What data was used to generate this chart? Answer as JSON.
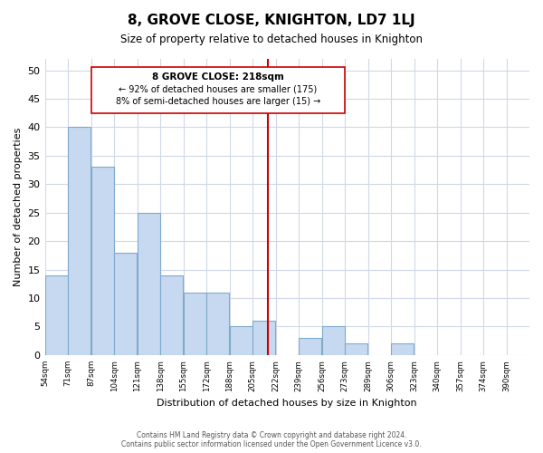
{
  "title": "8, GROVE CLOSE, KNIGHTON, LD7 1LJ",
  "subtitle": "Size of property relative to detached houses in Knighton",
  "xlabel": "Distribution of detached houses by size in Knighton",
  "ylabel": "Number of detached properties",
  "footer_line1": "Contains HM Land Registry data © Crown copyright and database right 2024.",
  "footer_line2": "Contains public sector information licensed under the Open Government Licence v3.0.",
  "bin_labels": [
    "54sqm",
    "71sqm",
    "87sqm",
    "104sqm",
    "121sqm",
    "138sqm",
    "155sqm",
    "172sqm",
    "188sqm",
    "205sqm",
    "222sqm",
    "239sqm",
    "256sqm",
    "273sqm",
    "289sqm",
    "306sqm",
    "323sqm",
    "340sqm",
    "357sqm",
    "374sqm",
    "390sqm"
  ],
  "bar_heights": [
    14,
    40,
    33,
    18,
    25,
    14,
    11,
    11,
    5,
    6,
    0,
    3,
    5,
    2,
    0,
    2,
    0,
    0,
    0,
    0,
    0
  ],
  "bar_color": "#c6d9f0",
  "bar_edge_color": "#7faacd",
  "vline_color": "#cc0000",
  "annotation_title": "8 GROVE CLOSE: 218sqm",
  "annotation_line1": "← 92% of detached houses are smaller (175)",
  "annotation_line2": "8% of semi-detached houses are larger (15) →",
  "annotation_box_color": "#ffffff",
  "annotation_box_edge_color": "#cc0000",
  "ylim": [
    0,
    52
  ],
  "xlim_start": 54,
  "bin_width": 17,
  "vline_x": 218
}
